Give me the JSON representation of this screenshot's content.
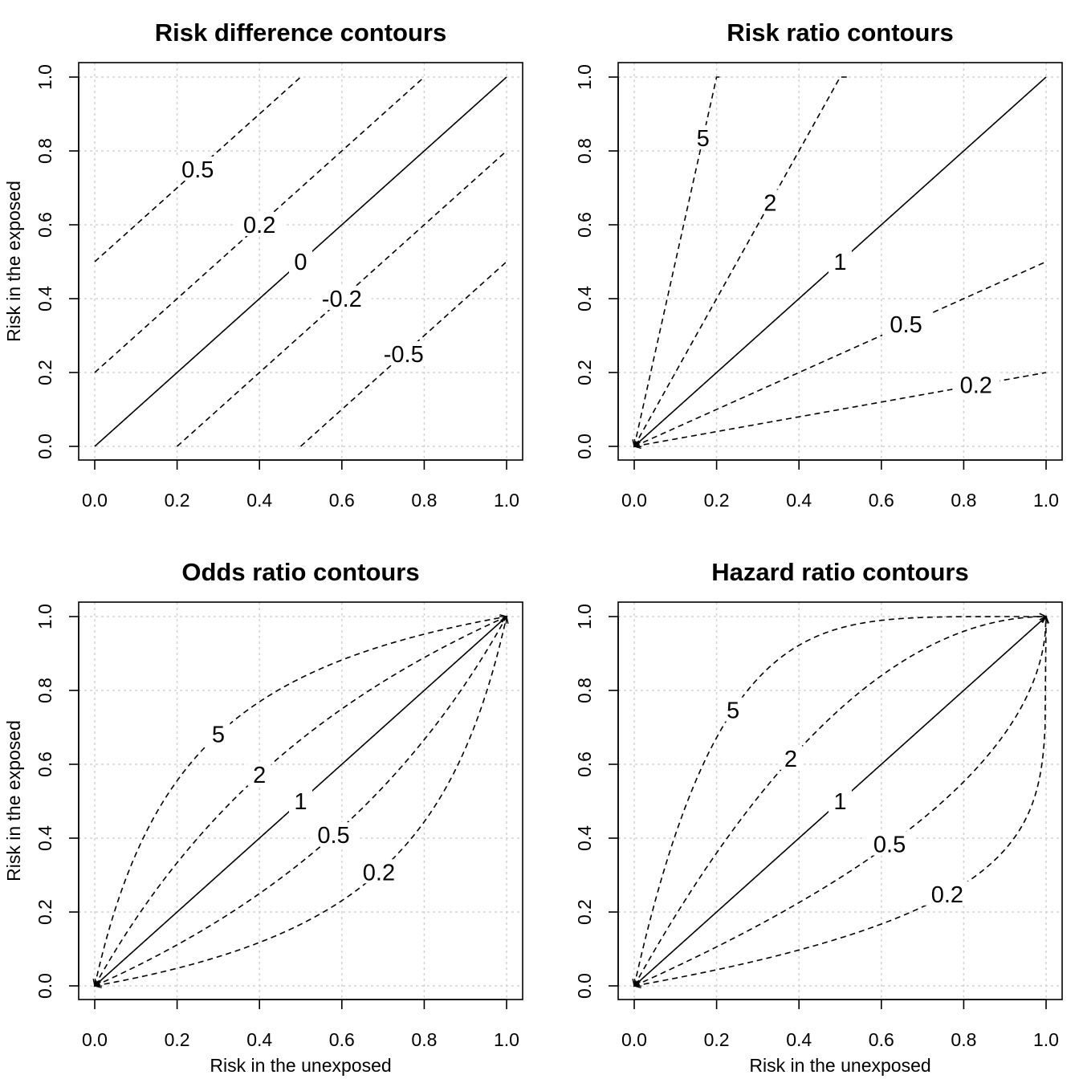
{
  "chart_data": [
    {
      "type": "line",
      "title": "Risk difference contours",
      "xlabel": "",
      "ylabel": "Risk in the exposed",
      "xlim": [
        0,
        1
      ],
      "ylim": [
        0,
        1
      ],
      "xticks": [
        "0.0",
        "0.2",
        "0.4",
        "0.6",
        "0.8",
        "1.0"
      ],
      "yticks": [
        "0.0",
        "0.2",
        "0.4",
        "0.6",
        "0.8",
        "1.0"
      ],
      "grid": true,
      "measure": "difference",
      "series": [
        {
          "label": "0.5",
          "value": 0.5,
          "style": "dashed"
        },
        {
          "label": "0.2",
          "value": 0.2,
          "style": "dashed"
        },
        {
          "label": "0",
          "value": 0,
          "style": "solid"
        },
        {
          "label": "-0.2",
          "value": -0.2,
          "style": "dashed"
        },
        {
          "label": "-0.5",
          "value": -0.5,
          "style": "dashed"
        }
      ]
    },
    {
      "type": "line",
      "title": "Risk ratio contours",
      "xlabel": "",
      "ylabel": "",
      "xlim": [
        0,
        1
      ],
      "ylim": [
        0,
        1
      ],
      "xticks": [
        "0.0",
        "0.2",
        "0.4",
        "0.6",
        "0.8",
        "1.0"
      ],
      "yticks": [
        "0.0",
        "0.2",
        "0.4",
        "0.6",
        "0.8",
        "1.0"
      ],
      "grid": true,
      "measure": "ratio",
      "series": [
        {
          "label": "5",
          "value": 5,
          "style": "dashed"
        },
        {
          "label": "2",
          "value": 2,
          "style": "dashed"
        },
        {
          "label": "1",
          "value": 1,
          "style": "solid"
        },
        {
          "label": "0.5",
          "value": 0.5,
          "style": "dashed"
        },
        {
          "label": "0.2",
          "value": 0.2,
          "style": "dashed"
        }
      ]
    },
    {
      "type": "line",
      "title": "Odds ratio contours",
      "xlabel": "Risk in the unexposed",
      "ylabel": "Risk in the exposed",
      "xlim": [
        0,
        1
      ],
      "ylim": [
        0,
        1
      ],
      "xticks": [
        "0.0",
        "0.2",
        "0.4",
        "0.6",
        "0.8",
        "1.0"
      ],
      "yticks": [
        "0.0",
        "0.2",
        "0.4",
        "0.6",
        "0.8",
        "1.0"
      ],
      "grid": true,
      "measure": "odds",
      "series": [
        {
          "label": "5",
          "value": 5,
          "style": "dashed"
        },
        {
          "label": "2",
          "value": 2,
          "style": "dashed"
        },
        {
          "label": "1",
          "value": 1,
          "style": "solid"
        },
        {
          "label": "0.5",
          "value": 0.5,
          "style": "dashed"
        },
        {
          "label": "0.2",
          "value": 0.2,
          "style": "dashed"
        }
      ]
    },
    {
      "type": "line",
      "title": "Hazard ratio contours",
      "xlabel": "Risk in the unexposed",
      "ylabel": "",
      "xlim": [
        0,
        1
      ],
      "ylim": [
        0,
        1
      ],
      "xticks": [
        "0.0",
        "0.2",
        "0.4",
        "0.6",
        "0.8",
        "1.0"
      ],
      "yticks": [
        "0.0",
        "0.2",
        "0.4",
        "0.6",
        "0.8",
        "1.0"
      ],
      "grid": true,
      "measure": "hazard",
      "series": [
        {
          "label": "5",
          "value": 5,
          "style": "dashed"
        },
        {
          "label": "2",
          "value": 2,
          "style": "dashed"
        },
        {
          "label": "1",
          "value": 1,
          "style": "solid"
        },
        {
          "label": "0.5",
          "value": 0.5,
          "style": "dashed"
        },
        {
          "label": "0.2",
          "value": 0.2,
          "style": "dashed"
        }
      ]
    }
  ]
}
